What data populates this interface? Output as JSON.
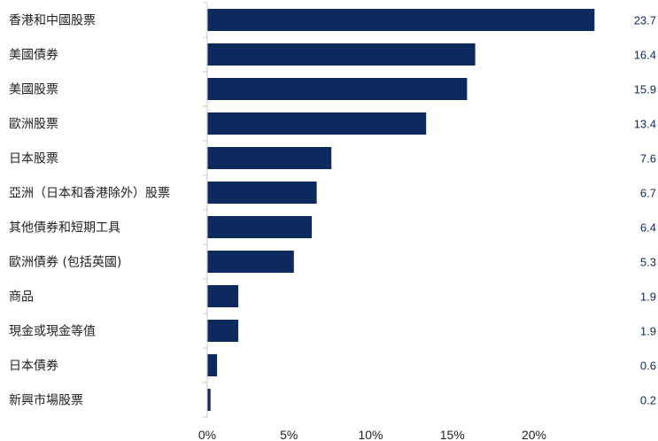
{
  "colors": {
    "bar": "#0d2a5e",
    "axis": "#c8c8c8",
    "value_text": "#0f2a5c",
    "label_text": "#222222"
  },
  "chart_data": {
    "type": "bar",
    "orientation": "horizontal",
    "title": "",
    "xlabel": "",
    "ylabel": "",
    "categories": [
      "香港和中國股票",
      "美國債券",
      "美國股票",
      "歐洲股票",
      "日本股票",
      "亞洲（日本和香港除外）股票",
      "其他債券和短期工具",
      "歐洲債券 (包括英國)",
      "商品",
      "現金或現金等值",
      "日本債券",
      "新興市場股票"
    ],
    "values": [
      23.7,
      16.4,
      15.9,
      13.4,
      7.6,
      6.7,
      6.4,
      5.3,
      1.9,
      1.9,
      0.6,
      0.2
    ],
    "value_labels": [
      "23.7",
      "16.4",
      "15.9",
      "13.4",
      "7.6",
      "6.7",
      "6.4",
      "5.3",
      "1.9",
      "1.9",
      "0.6",
      "0.2"
    ],
    "xlim": [
      0,
      25
    ],
    "xticks": [
      0,
      5,
      10,
      15,
      20
    ],
    "xtick_labels": [
      "0%",
      "5%",
      "10%",
      "15%",
      "20%"
    ],
    "grid": false,
    "legend": "none"
  }
}
